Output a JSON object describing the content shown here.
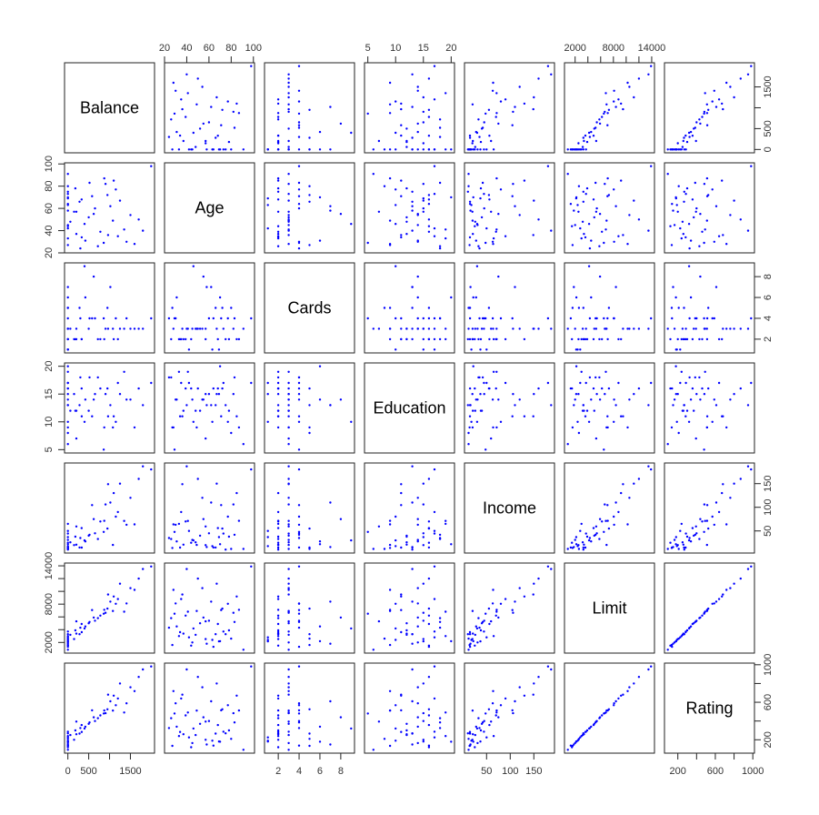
{
  "chart_data": {
    "type": "scatter",
    "title": "",
    "kind": "scatterplot matrix",
    "point_color": "#0000FF",
    "variables": [
      {
        "name": "Balance",
        "range": [
          0,
          1999
        ],
        "ticks": [
          0,
          500,
          1000,
          1500
        ],
        "tick_labels": [
          "0",
          "500",
          "",
          "1500"
        ]
      },
      {
        "name": "Age",
        "range": [
          23,
          98
        ],
        "ticks": [
          20,
          40,
          60,
          80,
          100
        ],
        "tick_labels": [
          "20",
          "40",
          "60",
          "80",
          "100"
        ]
      },
      {
        "name": "Cards",
        "range": [
          1,
          9
        ],
        "ticks": [
          2,
          4,
          6,
          8
        ],
        "tick_labels": [
          "2",
          "4",
          "6",
          "8"
        ]
      },
      {
        "name": "Education",
        "range": [
          5,
          20
        ],
        "ticks": [
          5,
          10,
          15,
          20
        ],
        "tick_labels": [
          "5",
          "10",
          "15",
          "20"
        ]
      },
      {
        "name": "Income",
        "range": [
          10.35,
          186.6
        ],
        "ticks": [
          50,
          100,
          150
        ],
        "tick_labels": [
          "50",
          "100",
          "150"
        ]
      },
      {
        "name": "Limit",
        "range": [
          855,
          13913
        ],
        "ticks": [
          2000,
          4000,
          6000,
          8000,
          10000,
          12000,
          14000
        ],
        "tick_labels": [
          "2000",
          "",
          "",
          "8000",
          "",
          "",
          "14000"
        ]
      },
      {
        "name": "Rating",
        "range": [
          93,
          982
        ],
        "ticks": [
          200,
          400,
          600,
          800,
          1000
        ],
        "tick_labels": [
          "200",
          "",
          "600",
          "",
          "1000"
        ]
      }
    ],
    "rows": [
      [
        333,
        34,
        2,
        11,
        14.9,
        3606,
        283
      ],
      [
        903,
        82,
        3,
        15,
        106.0,
        6645,
        483
      ],
      [
        580,
        71,
        4,
        11,
        104.6,
        7075,
        514
      ],
      [
        964,
        36,
        3,
        11,
        148.9,
        9504,
        681
      ],
      [
        331,
        68,
        2,
        16,
        55.9,
        4897,
        357
      ],
      [
        1151,
        77,
        4,
        10,
        80.2,
        8047,
        569
      ],
      [
        203,
        37,
        2,
        12,
        21.0,
        3388,
        259
      ],
      [
        872,
        87,
        2,
        9,
        71.4,
        7114,
        512
      ],
      [
        279,
        66,
        5,
        13,
        15.1,
        3300,
        266
      ],
      [
        1350,
        41,
        3,
        19,
        71.1,
        6819,
        491
      ],
      [
        1407,
        30,
        4,
        14,
        63.1,
        8117,
        589
      ],
      [
        0,
        64,
        4,
        16,
        15.0,
        1311,
        138
      ],
      [
        204,
        57,
        3,
        7,
        59.5,
        5308,
        394
      ],
      [
        1081,
        49,
        3,
        9,
        20.4,
        6922,
        511
      ],
      [
        0,
        75,
        2,
        13,
        10.6,
        3291,
        269
      ],
      [
        148,
        57,
        2,
        15,
        20.0,
        2525,
        200
      ],
      [
        0,
        73,
        3,
        17,
        44.5,
        3714,
        286
      ],
      [
        0,
        69,
        1,
        15,
        36.9,
        2170,
        182
      ],
      [
        1600,
        28,
        3,
        9,
        63.8,
        10230,
        719
      ],
      [
        0,
        44,
        2,
        16,
        25.0,
        1500,
        120
      ],
      [
        0,
        45,
        3,
        14,
        31.0,
        2000,
        165
      ],
      [
        500,
        52,
        3,
        12,
        40.0,
        5000,
        370
      ],
      [
        650,
        60,
        4,
        15,
        45.0,
        5400,
        400
      ],
      [
        0,
        80,
        5,
        8,
        12.0,
        2600,
        210
      ],
      [
        1200,
        35,
        2,
        17,
        90.0,
        8800,
        640
      ],
      [
        1500,
        54,
        3,
        14,
        120.0,
        10500,
        760
      ],
      [
        1999,
        98,
        4,
        17,
        180.0,
        13900,
        982
      ],
      [
        1800,
        40,
        3,
        13,
        186.6,
        13500,
        950
      ],
      [
        720,
        26,
        2,
        18,
        33.0,
        5800,
        430
      ],
      [
        420,
        31,
        6,
        14,
        28.0,
        4500,
        340
      ],
      [
        0,
        63,
        1,
        10,
        18.0,
        2400,
        190
      ],
      [
        950,
        72,
        5,
        16,
        55.0,
        7300,
        525
      ],
      [
        60,
        48,
        3,
        12,
        26.0,
        3200,
        250
      ],
      [
        1100,
        85,
        2,
        11,
        130.0,
        9200,
        670
      ],
      [
        300,
        24,
        4,
        18,
        35.0,
        4300,
        325
      ],
      [
        0,
        58,
        7,
        13,
        16.0,
        1800,
        150
      ],
      [
        780,
        39,
        2,
        16,
        70.0,
        6200,
        460
      ],
      [
        0,
        91,
        3,
        6,
        12.0,
        855,
        93
      ],
      [
        400,
        46,
        9,
        10,
        30.0,
        4200,
        320
      ],
      [
        1250,
        67,
        3,
        15,
        150.0,
        11200,
        800
      ],
      [
        0,
        33,
        2,
        19,
        65.0,
        3000,
        240
      ],
      [
        620,
        55,
        8,
        14,
        75.0,
        5900,
        440
      ],
      [
        0,
        70,
        6,
        20,
        22.0,
        2200,
        180
      ],
      [
        860,
        29,
        4,
        5,
        48.0,
        6500,
        480
      ],
      [
        1700,
        50,
        3,
        16,
        160.0,
        12000,
        870
      ],
      [
        180,
        78,
        2,
        12,
        38.0,
        3900,
        300
      ],
      [
        0,
        42,
        1,
        17,
        50.0,
        2800,
        225
      ],
      [
        1020,
        62,
        7,
        13,
        110.0,
        8400,
        610
      ],
      [
        520,
        83,
        4,
        18,
        42.0,
        5200,
        385
      ],
      [
        0,
        27,
        5,
        9,
        14.0,
        1600,
        135
      ]
    ]
  }
}
